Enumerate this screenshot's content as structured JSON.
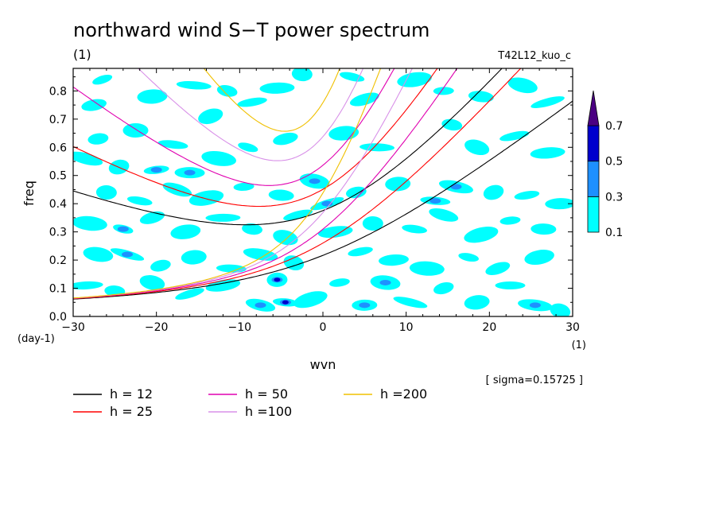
{
  "chart_data": {
    "type": "contour",
    "title": "northward wind S−T power spectrum",
    "subtitle_left": "(1)",
    "subtitle_right": "T42L12_kuo_c",
    "xlabel": "wvn",
    "ylabel": "freq",
    "x_unit": "(1)",
    "y_unit": "(day-1)",
    "xlim": [
      -30,
      30
    ],
    "ylim": [
      0,
      0.88
    ],
    "x_ticks": [
      -30,
      -20,
      -10,
      0,
      10,
      20,
      30
    ],
    "x_tick_labels": [
      "−30",
      "−20",
      "−10",
      "0",
      "10",
      "20",
      "30"
    ],
    "y_ticks": [
      0.0,
      0.1,
      0.2,
      0.3,
      0.4,
      0.5,
      0.6,
      0.7,
      0.8
    ],
    "y_tick_labels": [
      "0.0",
      "0.1",
      "0.2",
      "0.3",
      "0.4",
      "0.5",
      "0.6",
      "0.7",
      "0.8"
    ],
    "sigma_text": "[ sigma=0.15725 ]",
    "colorbar": {
      "levels": [
        0.1,
        0.3,
        0.5,
        0.7
      ],
      "level_labels": [
        "0.1",
        "0.3",
        "0.5",
        "0.7"
      ],
      "colors": [
        "#00ffff",
        "#1e90ff",
        "#0000cd",
        "#4b0082"
      ],
      "extend": "max"
    },
    "dispersion_curves": [
      {
        "label": "h = 12",
        "h": 12,
        "color": "#000000"
      },
      {
        "label": "h = 25",
        "h": 25,
        "color": "#ff0000"
      },
      {
        "label": "h = 50",
        "h": 50,
        "color": "#e000b0"
      },
      {
        "label": "h =100",
        "h": 100,
        "color": "#d890e8"
      },
      {
        "label": "h =200",
        "h": 200,
        "color": "#f0c000"
      }
    ],
    "spots": [
      {
        "x": -26.5,
        "y": 0.84,
        "level": 0.1
      },
      {
        "x": -27.5,
        "y": 0.75,
        "level": 0.1
      },
      {
        "x": -20.5,
        "y": 0.78,
        "level": 0.1
      },
      {
        "x": -15.5,
        "y": 0.82,
        "level": 0.1
      },
      {
        "x": -11.5,
        "y": 0.8,
        "level": 0.1
      },
      {
        "x": -13.5,
        "y": 0.71,
        "level": 0.1
      },
      {
        "x": -8.5,
        "y": 0.76,
        "level": 0.1
      },
      {
        "x": -5.5,
        "y": 0.81,
        "level": 0.1
      },
      {
        "x": -2.5,
        "y": 0.86,
        "level": 0.1
      },
      {
        "x": 3.5,
        "y": 0.85,
        "level": 0.1
      },
      {
        "x": 5.0,
        "y": 0.77,
        "level": 0.1
      },
      {
        "x": 11.0,
        "y": 0.84,
        "level": 0.1
      },
      {
        "x": 14.5,
        "y": 0.8,
        "level": 0.1
      },
      {
        "x": 19.0,
        "y": 0.78,
        "level": 0.1
      },
      {
        "x": 24.0,
        "y": 0.82,
        "level": 0.1
      },
      {
        "x": 27.0,
        "y": 0.76,
        "level": 0.1
      },
      {
        "x": -27.0,
        "y": 0.63,
        "level": 0.1
      },
      {
        "x": -22.5,
        "y": 0.66,
        "level": 0.1
      },
      {
        "x": -18.0,
        "y": 0.61,
        "level": 0.1
      },
      {
        "x": -28.5,
        "y": 0.56,
        "level": 0.1
      },
      {
        "x": -24.5,
        "y": 0.53,
        "level": 0.1
      },
      {
        "x": -20.0,
        "y": 0.52,
        "level": 0.3
      },
      {
        "x": -16.0,
        "y": 0.51,
        "level": 0.3
      },
      {
        "x": -12.5,
        "y": 0.56,
        "level": 0.1
      },
      {
        "x": -9.0,
        "y": 0.6,
        "level": 0.1
      },
      {
        "x": -4.5,
        "y": 0.63,
        "level": 0.1
      },
      {
        "x": 2.5,
        "y": 0.65,
        "level": 0.1
      },
      {
        "x": 6.5,
        "y": 0.6,
        "level": 0.1
      },
      {
        "x": 15.5,
        "y": 0.68,
        "level": 0.1
      },
      {
        "x": 18.5,
        "y": 0.6,
        "level": 0.1
      },
      {
        "x": 23.0,
        "y": 0.64,
        "level": 0.1
      },
      {
        "x": 27.0,
        "y": 0.58,
        "level": 0.1
      },
      {
        "x": -26.0,
        "y": 0.44,
        "level": 0.1
      },
      {
        "x": -22.0,
        "y": 0.41,
        "level": 0.1
      },
      {
        "x": -17.5,
        "y": 0.45,
        "level": 0.1
      },
      {
        "x": -14.0,
        "y": 0.42,
        "level": 0.1
      },
      {
        "x": -9.5,
        "y": 0.46,
        "level": 0.1
      },
      {
        "x": -5.0,
        "y": 0.43,
        "level": 0.1
      },
      {
        "x": -1.0,
        "y": 0.48,
        "level": 0.3
      },
      {
        "x": 0.5,
        "y": 0.4,
        "level": 0.3
      },
      {
        "x": 4.0,
        "y": 0.44,
        "level": 0.1
      },
      {
        "x": 9.0,
        "y": 0.47,
        "level": 0.1
      },
      {
        "x": 13.5,
        "y": 0.41,
        "level": 0.3
      },
      {
        "x": 16.0,
        "y": 0.46,
        "level": 0.3
      },
      {
        "x": 20.5,
        "y": 0.44,
        "level": 0.1
      },
      {
        "x": 24.5,
        "y": 0.43,
        "level": 0.1
      },
      {
        "x": 28.5,
        "y": 0.4,
        "level": 0.1
      },
      {
        "x": -28.0,
        "y": 0.33,
        "level": 0.1
      },
      {
        "x": -24.0,
        "y": 0.31,
        "level": 0.3
      },
      {
        "x": -20.5,
        "y": 0.35,
        "level": 0.1
      },
      {
        "x": -16.5,
        "y": 0.3,
        "level": 0.1
      },
      {
        "x": -12.0,
        "y": 0.35,
        "level": 0.1
      },
      {
        "x": -8.5,
        "y": 0.31,
        "level": 0.1
      },
      {
        "x": -4.5,
        "y": 0.28,
        "level": 0.1
      },
      {
        "x": -3.0,
        "y": 0.36,
        "level": 0.1
      },
      {
        "x": 1.5,
        "y": 0.3,
        "level": 0.1
      },
      {
        "x": 6.0,
        "y": 0.33,
        "level": 0.1
      },
      {
        "x": 11.0,
        "y": 0.31,
        "level": 0.1
      },
      {
        "x": 14.5,
        "y": 0.36,
        "level": 0.1
      },
      {
        "x": 19.0,
        "y": 0.29,
        "level": 0.1
      },
      {
        "x": 22.5,
        "y": 0.34,
        "level": 0.1
      },
      {
        "x": 26.5,
        "y": 0.31,
        "level": 0.1
      },
      {
        "x": -27.0,
        "y": 0.22,
        "level": 0.1
      },
      {
        "x": -23.5,
        "y": 0.22,
        "level": 0.3
      },
      {
        "x": -19.5,
        "y": 0.18,
        "level": 0.1
      },
      {
        "x": -15.5,
        "y": 0.21,
        "level": 0.1
      },
      {
        "x": -11.0,
        "y": 0.17,
        "level": 0.1
      },
      {
        "x": -7.5,
        "y": 0.22,
        "level": 0.1
      },
      {
        "x": -3.5,
        "y": 0.19,
        "level": 0.1
      },
      {
        "x": 4.5,
        "y": 0.23,
        "level": 0.1
      },
      {
        "x": 8.5,
        "y": 0.2,
        "level": 0.1
      },
      {
        "x": 12.5,
        "y": 0.17,
        "level": 0.1
      },
      {
        "x": 17.5,
        "y": 0.21,
        "level": 0.1
      },
      {
        "x": 21.0,
        "y": 0.17,
        "level": 0.1
      },
      {
        "x": 26.0,
        "y": 0.21,
        "level": 0.1
      },
      {
        "x": -28.5,
        "y": 0.11,
        "level": 0.1
      },
      {
        "x": -25.0,
        "y": 0.09,
        "level": 0.1
      },
      {
        "x": -20.5,
        "y": 0.12,
        "level": 0.1
      },
      {
        "x": -16.0,
        "y": 0.08,
        "level": 0.1
      },
      {
        "x": -12.0,
        "y": 0.11,
        "level": 0.1
      },
      {
        "x": -5.5,
        "y": 0.13,
        "level": 0.5
      },
      {
        "x": -4.5,
        "y": 0.05,
        "level": 0.5
      },
      {
        "x": -7.5,
        "y": 0.04,
        "level": 0.3
      },
      {
        "x": -1.5,
        "y": 0.06,
        "level": 0.1
      },
      {
        "x": 2.0,
        "y": 0.12,
        "level": 0.1
      },
      {
        "x": 5.0,
        "y": 0.04,
        "level": 0.3
      },
      {
        "x": 7.5,
        "y": 0.12,
        "level": 0.3
      },
      {
        "x": 10.5,
        "y": 0.05,
        "level": 0.1
      },
      {
        "x": 14.5,
        "y": 0.1,
        "level": 0.1
      },
      {
        "x": 18.5,
        "y": 0.05,
        "level": 0.1
      },
      {
        "x": 22.5,
        "y": 0.11,
        "level": 0.1
      },
      {
        "x": 25.5,
        "y": 0.04,
        "level": 0.3
      },
      {
        "x": 28.5,
        "y": 0.02,
        "level": 0.1
      }
    ]
  }
}
